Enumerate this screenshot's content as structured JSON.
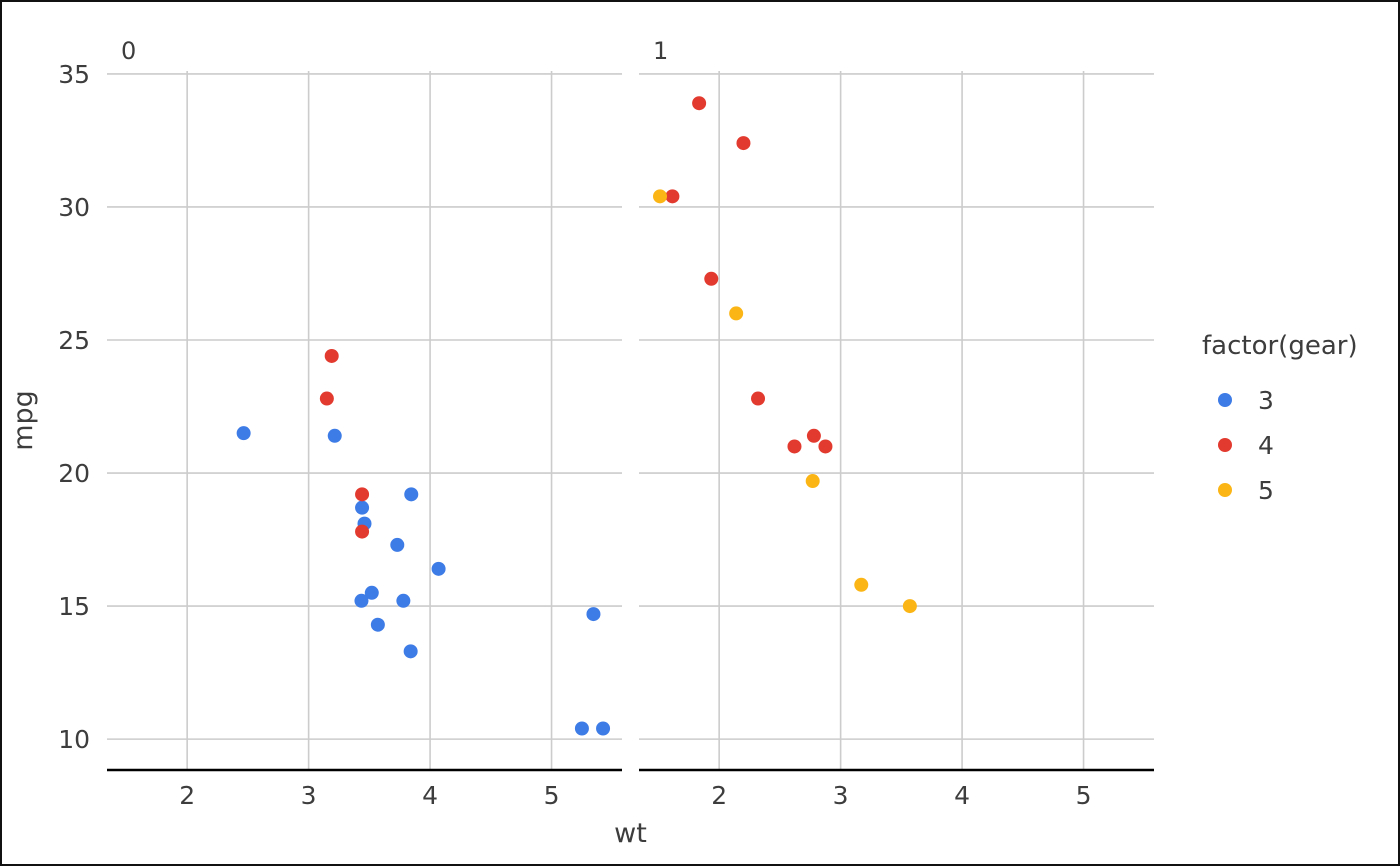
{
  "figure": {
    "background_color": "#ffffff",
    "border_color": "#111111"
  },
  "theme": {
    "grid_color": "#cccccc",
    "axis_line_color": "#000000",
    "text_color": "#3d3d3d",
    "point_radius": 7
  },
  "chart_data": {
    "type": "scatter",
    "title": "",
    "xlabel": "wt",
    "ylabel": "mpg",
    "facet_variable": "am",
    "facets": [
      "0",
      "1"
    ],
    "x_ticks": [
      2,
      3,
      4,
      5
    ],
    "y_ticks": [
      10,
      15,
      20,
      25,
      30,
      35
    ],
    "x_domain": [
      1.34,
      5.58
    ],
    "y_domain": [
      8.84,
      35.11
    ],
    "grid": true,
    "legend": {
      "title": "factor(gear)",
      "position": "right",
      "entries": [
        {
          "label": "3",
          "color": "#3D7BE6"
        },
        {
          "label": "4",
          "color": "#E23A2E"
        },
        {
          "label": "5",
          "color": "#FBB515"
        }
      ]
    },
    "series": [
      {
        "name": "3",
        "color": "#3D7BE6",
        "points": [
          {
            "am": "0",
            "wt": 2.465,
            "mpg": 21.5
          },
          {
            "am": "0",
            "wt": 3.215,
            "mpg": 21.4
          },
          {
            "am": "0",
            "wt": 3.44,
            "mpg": 18.7
          },
          {
            "am": "0",
            "wt": 3.46,
            "mpg": 18.1
          },
          {
            "am": "0",
            "wt": 3.57,
            "mpg": 14.3
          },
          {
            "am": "0",
            "wt": 3.73,
            "mpg": 17.3
          },
          {
            "am": "0",
            "wt": 3.78,
            "mpg": 15.2
          },
          {
            "am": "0",
            "wt": 4.07,
            "mpg": 16.4
          },
          {
            "am": "0",
            "wt": 3.52,
            "mpg": 15.5
          },
          {
            "am": "0",
            "wt": 3.435,
            "mpg": 15.2
          },
          {
            "am": "0",
            "wt": 3.84,
            "mpg": 13.3
          },
          {
            "am": "0",
            "wt": 3.845,
            "mpg": 19.2
          },
          {
            "am": "0",
            "wt": 5.25,
            "mpg": 10.4
          },
          {
            "am": "0",
            "wt": 5.424,
            "mpg": 10.4
          },
          {
            "am": "0",
            "wt": 5.345,
            "mpg": 14.7
          }
        ]
      },
      {
        "name": "4",
        "color": "#E23A2E",
        "points": [
          {
            "am": "0",
            "wt": 3.19,
            "mpg": 24.4
          },
          {
            "am": "0",
            "wt": 3.15,
            "mpg": 22.8
          },
          {
            "am": "0",
            "wt": 3.44,
            "mpg": 19.2
          },
          {
            "am": "0",
            "wt": 3.44,
            "mpg": 17.8
          },
          {
            "am": "1",
            "wt": 2.62,
            "mpg": 21.0
          },
          {
            "am": "1",
            "wt": 2.875,
            "mpg": 21.0
          },
          {
            "am": "1",
            "wt": 2.32,
            "mpg": 22.8
          },
          {
            "am": "1",
            "wt": 2.2,
            "mpg": 32.4
          },
          {
            "am": "1",
            "wt": 1.615,
            "mpg": 30.4
          },
          {
            "am": "1",
            "wt": 1.835,
            "mpg": 33.9
          },
          {
            "am": "1",
            "wt": 1.935,
            "mpg": 27.3
          },
          {
            "am": "1",
            "wt": 2.78,
            "mpg": 21.4
          }
        ]
      },
      {
        "name": "5",
        "color": "#FBB515",
        "points": [
          {
            "am": "1",
            "wt": 2.14,
            "mpg": 26.0
          },
          {
            "am": "1",
            "wt": 1.513,
            "mpg": 30.4
          },
          {
            "am": "1",
            "wt": 3.17,
            "mpg": 15.8
          },
          {
            "am": "1",
            "wt": 2.77,
            "mpg": 19.7
          },
          {
            "am": "1",
            "wt": 3.57,
            "mpg": 15.0
          }
        ]
      }
    ]
  }
}
